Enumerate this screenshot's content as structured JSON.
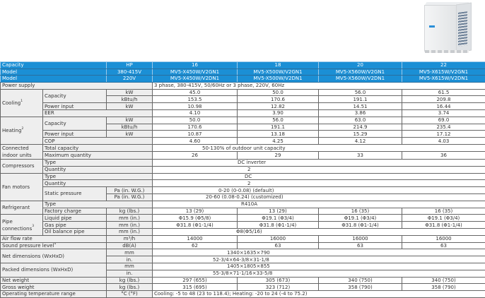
{
  "header": {
    "capacity_label": "Capacity",
    "hp_label": "HP",
    "model_label": "Model",
    "v380": "380-415V",
    "v220": "220V",
    "models": [
      {
        "hp": "16",
        "gn": "MV5-X450W/V2GN1",
        "dn": "MV5-X450W/V2DN1"
      },
      {
        "hp": "18",
        "gn": "MV5-X500W/V2GN1",
        "dn": "MV5-X500W/V2DN1"
      },
      {
        "hp": "20",
        "gn": "MV5-X560W/V2GN1",
        "dn": "MV5-X560W/V2DN1"
      },
      {
        "hp": "22",
        "gn": "MV5-X615W/V2GN1",
        "dn": "MV5-X615W/V2DN1"
      }
    ]
  },
  "power_supply": {
    "label": "Power supply",
    "value": "3 phase, 380-415V, 50/60Hz or 3 phase, 220V, 60Hz"
  },
  "cooling": {
    "label": "Cooling",
    "sup": "1",
    "capacity_label": "Capacity",
    "unit_kw": "kW",
    "unit_kbtu": "kBtu/h",
    "cap_kw": [
      "45.0",
      "50.0",
      "56.0",
      "61.5"
    ],
    "cap_kbtu": [
      "153.5",
      "170.6",
      "191.1",
      "209.8"
    ],
    "power_label": "Power input",
    "power_unit": "kW",
    "power": [
      "10.98",
      "12.82",
      "14.51",
      "16.44"
    ],
    "ratio_label": "EER",
    "ratio": [
      "4.10",
      "3.90",
      "3.86",
      "3.74"
    ]
  },
  "heating": {
    "label": "Heating",
    "sup": "2",
    "capacity_label": "Capacity",
    "unit_kw": "kW",
    "unit_kbtu": "kBtu/h",
    "cap_kw": [
      "50.0",
      "56.0",
      "63.0",
      "69.0"
    ],
    "cap_kbtu": [
      "170.6",
      "191.1",
      "214.9",
      "235.4"
    ],
    "power_label": "Power input",
    "power_unit": "kW",
    "power": [
      "10.87",
      "13.18",
      "15.29",
      "17.12"
    ],
    "ratio_label": "COP",
    "ratio": [
      "4.60",
      "4.25",
      "4.12",
      "4.03"
    ]
  },
  "connected": {
    "label": "Connected indoor units",
    "total_label": "Total capacity",
    "total": "50-130% of outdoor unit capacity",
    "max_label": "Maximum quantity",
    "max": [
      "26",
      "29",
      "33",
      "36"
    ]
  },
  "compressors": {
    "label": "Compressors",
    "type_label": "Type",
    "type": "DC inverter",
    "qty_label": "Quantity",
    "qty": "2"
  },
  "fan": {
    "label": "Fan motors",
    "type_label": "Type",
    "type": "DC",
    "qty_label": "Quantity",
    "qty": "2",
    "static_label": "Static pressure",
    "unit": "Pa (in. W.G.)",
    "static_default": "0-20 (0-0.08) (default)",
    "static_custom": "20-60 (0.08-0.24) (customized)"
  },
  "refrigerant": {
    "label": "Refrigerant",
    "type_label": "Type",
    "type": "R410A",
    "charge_label": "Factory charge",
    "unit": "kg (lbs.)",
    "charge": [
      "13 (29)",
      "13 (29)",
      "16 (35)",
      "16 (35)"
    ]
  },
  "pipe": {
    "label": "Pipe connections",
    "sup": "3",
    "unit": "mm (in.)",
    "liquid_label": "Liquid pipe",
    "liquid": [
      "Φ15.9 (Φ5/8)",
      "Φ19.1 (Φ3/4)",
      "Φ19.1 (Φ3/4)",
      "Φ19.1 (Φ3/4)"
    ],
    "gas_label": "Gas pipe",
    "gas": [
      "Φ31.8 (Φ1-1/4)",
      "Φ31.8 (Φ1-1/4)",
      "Φ31.8 (Φ1-1/4)",
      "Φ31.8 (Φ1-1/4)"
    ],
    "oil_label": "Oil balance pipe",
    "oil": "Φ8(Φ5/16)"
  },
  "airflow": {
    "label": "Air flow rate",
    "unit": "m³/h",
    "values": [
      "14000",
      "16000",
      "16000",
      "16000"
    ]
  },
  "sound": {
    "label": "Sound pressure level",
    "sup": "4",
    "unit": "dB(A)",
    "values": [
      "62",
      "63",
      "63",
      "63"
    ]
  },
  "net_dim": {
    "label": "Net dimensions (WxHxD)",
    "unit_mm": "mm",
    "unit_in": "in.",
    "mm": "1340×1635×790",
    "in": "52-3/4×64-3/8×31-1/8"
  },
  "packed_dim": {
    "label": "Packed dimensions (WxHxD)",
    "unit_mm": "mm",
    "unit_in": "in.",
    "mm": "1405×1805×855",
    "in": "55-3/8×71-1/16×33-5/8"
  },
  "net_weight": {
    "label": "Net weight",
    "unit": "kg (lbs.)",
    "values": [
      "297 (655)",
      "305 (673)",
      "340 (750)",
      "340 (750)"
    ]
  },
  "gross_weight": {
    "label": "Gross weight",
    "unit": "kg (lbs.)",
    "values": [
      "315 (695)",
      "323 (712)",
      "358 (790)",
      "358 (790)"
    ]
  },
  "op_temp": {
    "label": "Operating temperature range",
    "unit": "°C (°F)",
    "value": "Cooling: -5 to 48 (23 to 118.4); Heating: -20 to 24 (-4 to 75.2)"
  },
  "colors": {
    "header_blue": "#1b8fd5",
    "label_gray": "#eeeeee"
  }
}
